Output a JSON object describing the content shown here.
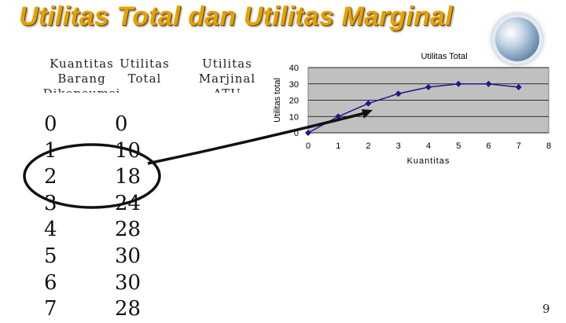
{
  "slide": {
    "title": "Utilitas Total dan Utilitas Marginal",
    "page_number": "9"
  },
  "table": {
    "headers": {
      "qty": "Kuantitas Barang Dikonsumsi",
      "total": "Utilitas Total",
      "marginal": "Utilitas Marjinal ATU"
    },
    "qty_values": [
      "0",
      "1",
      "2",
      "3",
      "4",
      "5",
      "6",
      "7"
    ],
    "total_values": [
      "0",
      "10",
      "18",
      "24",
      "28",
      "30",
      "30",
      "28"
    ]
  },
  "colors": {
    "title": "#e8a000",
    "line": "#1a1a8c",
    "annotation": "#111111",
    "plot_bg": "#c0c0c0"
  },
  "chart_data": {
    "type": "line",
    "title": "Utilitas Total",
    "xlabel": "Kuantitas",
    "ylabel": "Utilitas total",
    "x": [
      0,
      1,
      2,
      3,
      4,
      5,
      6,
      7
    ],
    "series": [
      {
        "values": [
          0,
          10,
          18,
          24,
          28,
          30,
          30,
          28
        ]
      }
    ],
    "xlim": [
      0,
      8
    ],
    "ylim": [
      0,
      40
    ],
    "x_ticks": [
      "0",
      "1",
      "2",
      "3",
      "4",
      "5",
      "6",
      "7",
      "8"
    ],
    "y_ticks": [
      "0",
      "10",
      "20",
      "30",
      "40"
    ],
    "grid": true,
    "legend": "none"
  }
}
